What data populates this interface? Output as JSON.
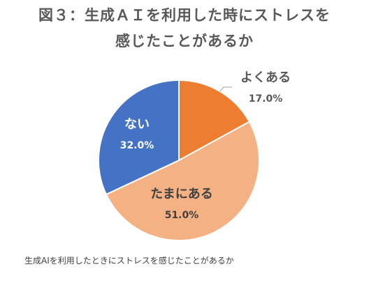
{
  "title": {
    "line1": "図３：生成ＡＩを利用した時にストレスを",
    "line2": "感じたことがあるか"
  },
  "caption": "生成AIを利用したときにストレスを感じたことがあるか",
  "chart_data": {
    "type": "pie",
    "title": "図３：生成ＡＩを利用した時にストレスを感じたことがあるか",
    "slices": [
      {
        "label": "よくある",
        "value": 17.0,
        "value_label": "17.0%",
        "color": "#ED7D31",
        "label_color": "#595959"
      },
      {
        "label": "たまにある",
        "value": 51.0,
        "value_label": "51.0%",
        "color": "#F4B183",
        "label_color": "#404040"
      },
      {
        "label": "ない",
        "value": 32.0,
        "value_label": "32.0%",
        "color": "#4472C4",
        "label_color": "#FFFFFF"
      }
    ],
    "start": "12 o'clock",
    "direction": "clockwise",
    "legend": "none"
  }
}
